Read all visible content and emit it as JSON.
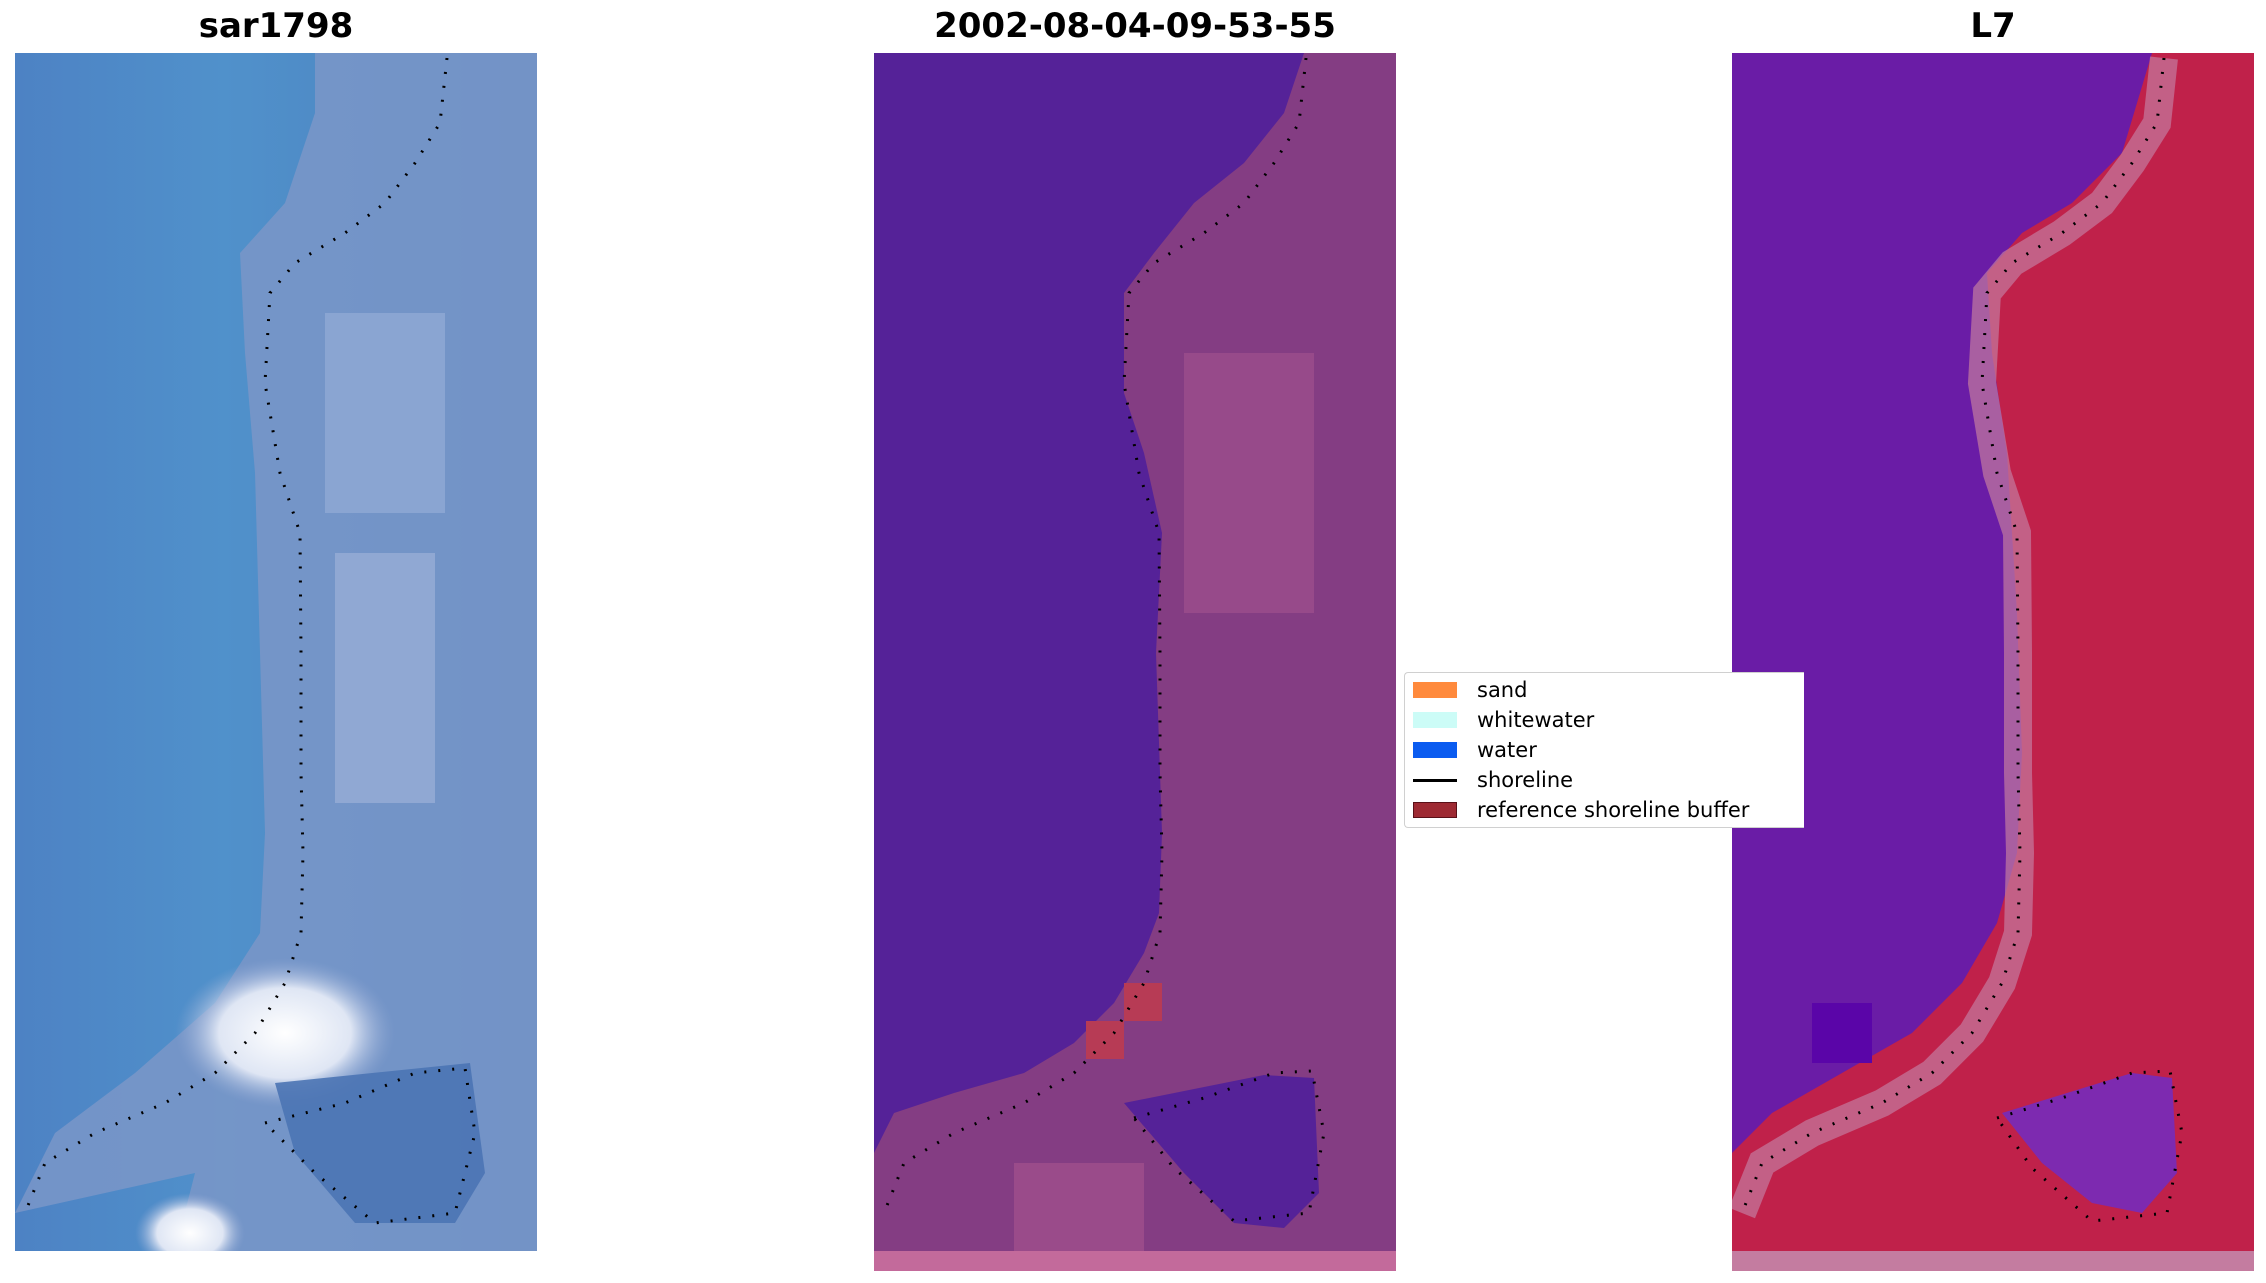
{
  "panels": [
    {
      "title": "sar1798"
    },
    {
      "title": "2002-08-04-09-53-55"
    },
    {
      "title": "L7"
    }
  ],
  "legend": {
    "items": [
      {
        "label": "sand",
        "color": "#ff8a3d",
        "kind": "patch"
      },
      {
        "label": "whitewater",
        "color": "#ccfcf7",
        "kind": "patch"
      },
      {
        "label": "water",
        "color": "#0b5cf0",
        "kind": "patch"
      },
      {
        "label": "shoreline",
        "color": "#000000",
        "kind": "line"
      },
      {
        "label": "reference shoreline buffer",
        "color": "#9e2a33",
        "kind": "patch"
      }
    ]
  },
  "colors": {
    "rgb_water": "#4f88c6",
    "rgb_land": "#8fa6d2",
    "rgb_whitewater": "#f4f6fb",
    "class_water": "#552298",
    "class_land": "#843d83",
    "class_land_light": "#a8558f",
    "class_buffer": "#b73b55",
    "class_bottom_strip": "#c36a9b",
    "l7_water": "#6a1ca6",
    "l7_land": "#c0214a",
    "l7_strip": "#c47ca0"
  }
}
